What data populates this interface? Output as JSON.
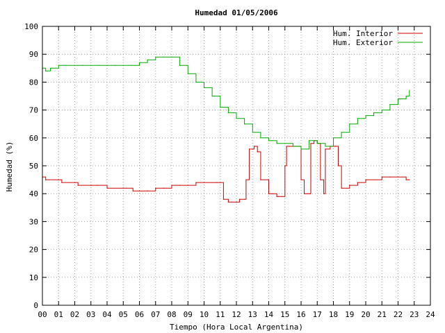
{
  "chart_data": {
    "type": "line",
    "title": "Humedad 01/05/2006",
    "xlabel": "Tiempo (Hora Local Argentina)",
    "ylabel": "Humedad (%)",
    "xlim": [
      0,
      24
    ],
    "ylim": [
      0,
      100
    ],
    "x_ticks": [
      "00",
      "01",
      "02",
      "03",
      "04",
      "05",
      "06",
      "07",
      "08",
      "09",
      "10",
      "11",
      "12",
      "13",
      "14",
      "15",
      "16",
      "17",
      "18",
      "19",
      "20",
      "21",
      "22",
      "23",
      "24"
    ],
    "y_ticks": [
      0,
      10,
      20,
      30,
      40,
      50,
      60,
      70,
      80,
      90,
      100
    ],
    "grid": true,
    "legend_position": "top-right",
    "series": [
      {
        "name": "Hum. Interior",
        "color": "#cc0000",
        "x": [
          0.0,
          0.2,
          0.4,
          1.0,
          1.2,
          2.0,
          2.2,
          3.0,
          3.4,
          4.0,
          5.0,
          5.2,
          5.6,
          6.0,
          6.5,
          7.0,
          7.5,
          8.0,
          8.5,
          9.0,
          9.5,
          10.0,
          10.8,
          11.0,
          11.2,
          11.5,
          11.7,
          12.0,
          12.2,
          12.5,
          12.6,
          12.8,
          13.0,
          13.1,
          13.3,
          13.5,
          14.0,
          14.2,
          14.5,
          14.6,
          14.8,
          15.0,
          15.1,
          15.3,
          15.5,
          16.0,
          16.2,
          16.3,
          16.4,
          16.5,
          16.6,
          16.8,
          17.0,
          17.2,
          17.4,
          17.5,
          17.8,
          18.0,
          18.1,
          18.3,
          18.5,
          19.0,
          19.5,
          20.0,
          21.0,
          21.5,
          22.0,
          22.5,
          22.7
        ],
        "y": [
          46,
          45,
          45,
          45,
          44,
          44,
          43,
          43,
          43,
          42,
          42,
          42,
          41,
          41,
          41,
          42,
          42,
          43,
          43,
          43,
          44,
          44,
          44,
          44,
          38,
          37,
          37,
          37,
          38,
          38,
          45,
          56,
          56,
          57,
          55,
          45,
          40,
          40,
          39,
          39,
          39,
          50,
          57,
          57,
          57,
          45,
          40,
          40,
          40,
          40,
          58,
          59,
          58,
          45,
          40,
          56,
          57,
          57,
          57,
          50,
          42,
          43,
          44,
          45,
          46,
          46,
          46,
          45,
          45
        ]
      },
      {
        "name": "Hum. Exterior",
        "color": "#00aa00",
        "x": [
          0.0,
          0.2,
          0.5,
          1.0,
          1.5,
          2.0,
          2.5,
          3.0,
          3.5,
          4.0,
          4.5,
          5.0,
          5.5,
          6.0,
          6.5,
          7.0,
          7.5,
          8.0,
          8.5,
          9.0,
          9.5,
          10.0,
          10.5,
          11.0,
          11.5,
          12.0,
          12.5,
          13.0,
          13.5,
          14.0,
          14.5,
          15.0,
          15.5,
          16.0,
          16.5,
          17.0,
          17.5,
          18.0,
          18.5,
          19.0,
          19.5,
          20.0,
          20.5,
          21.0,
          21.5,
          22.0,
          22.5,
          22.7
        ],
        "y": [
          85,
          84,
          85,
          86,
          86,
          86,
          86,
          86,
          86,
          86,
          86,
          86,
          86,
          87,
          88,
          89,
          89,
          89,
          86,
          83,
          80,
          78,
          75,
          71,
          69,
          67,
          65,
          62,
          60,
          59,
          58,
          58,
          57,
          56,
          59,
          58,
          57,
          60,
          62,
          65,
          67,
          68,
          69,
          70,
          72,
          74,
          75,
          77
        ]
      }
    ]
  }
}
